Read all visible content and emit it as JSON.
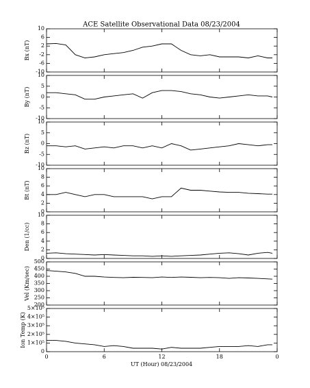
{
  "title": "ACE Satellite Observational Data   08/23/2004",
  "xlabel": "UT (Hour)   08/23/2004",
  "xlim": [
    0,
    24
  ],
  "xticks": [
    0,
    6,
    12,
    18,
    {
      "value": 24,
      "label": "0"
    }
  ],
  "chart_data": [
    {
      "type": "line",
      "ylabel": "Bx (nT)",
      "ylim": [
        -10,
        10
      ],
      "yticks": [
        -10,
        -6,
        -2,
        2,
        6,
        10
      ],
      "color": "#000000",
      "x": [
        0,
        1,
        2,
        3,
        4,
        5,
        6,
        7,
        8,
        9,
        10,
        11,
        12,
        13,
        14,
        15,
        16,
        17,
        18,
        19,
        20,
        21,
        22,
        23,
        23.5
      ],
      "values": [
        3,
        3.2,
        2.5,
        -2,
        -3.5,
        -3,
        -2,
        -1.5,
        -1,
        0,
        1.5,
        2,
        3,
        3,
        0,
        -2,
        -2.5,
        -2,
        -3,
        -3,
        -3,
        -3.5,
        -2.5,
        -3.5,
        -3.5
      ]
    },
    {
      "type": "line",
      "ylabel": "By (nT)",
      "ylim": [
        -10,
        10
      ],
      "yticks": [
        -10,
        -5,
        0,
        5,
        10
      ],
      "color": "#000000",
      "x": [
        0,
        1,
        2,
        3,
        4,
        5,
        6,
        7,
        8,
        9,
        10,
        11,
        12,
        13,
        14,
        15,
        16,
        17,
        18,
        19,
        20,
        21,
        22,
        23,
        23.5
      ],
      "values": [
        2,
        2,
        1.5,
        1,
        -1,
        -1,
        0,
        0.5,
        1,
        1.5,
        -0.5,
        2,
        3,
        3,
        2.5,
        1.5,
        1,
        0,
        -0.5,
        0,
        0.5,
        1,
        0.5,
        0.5,
        0
      ]
    },
    {
      "type": "line",
      "ylabel": "Bz (nT)",
      "ylim": [
        -10,
        10
      ],
      "yticks": [
        -10,
        -5,
        0,
        5,
        10
      ],
      "color": "#000000",
      "x": [
        0,
        1,
        2,
        3,
        4,
        5,
        6,
        7,
        8,
        9,
        10,
        11,
        12,
        13,
        14,
        15,
        16,
        17,
        18,
        19,
        20,
        21,
        22,
        23,
        23.5
      ],
      "values": [
        -1,
        -1,
        -1.5,
        -1,
        -2.5,
        -2,
        -1.5,
        -2,
        -1,
        -1,
        -2,
        -1,
        -2,
        0,
        -1,
        -3,
        -2.5,
        -2,
        -1.5,
        -1,
        0,
        -0.5,
        -1,
        -0.5,
        -0.5
      ]
    },
    {
      "type": "line",
      "ylabel": "Bt (nT)",
      "ylim": [
        0,
        10
      ],
      "yticks": [
        0,
        2,
        4,
        6,
        8,
        10
      ],
      "color": "#000000",
      "x": [
        0,
        1,
        2,
        3,
        4,
        5,
        6,
        7,
        8,
        9,
        10,
        11,
        12,
        13,
        14,
        15,
        16,
        17,
        18,
        19,
        20,
        21,
        22,
        23,
        23.5
      ],
      "values": [
        4,
        4,
        4.5,
        4,
        3.5,
        4,
        4,
        3.5,
        3.5,
        3.5,
        3.5,
        3,
        3.5,
        3.5,
        5.5,
        5,
        5,
        4.8,
        4.6,
        4.5,
        4.5,
        4.3,
        4.2,
        4.1,
        4.1
      ]
    },
    {
      "type": "line",
      "ylabel": "Den (1/cc)",
      "ylim": [
        0,
        10
      ],
      "yticks": [
        0,
        2,
        4,
        6,
        8,
        10
      ],
      "color": "#000000",
      "x": [
        0,
        1,
        2,
        3,
        4,
        5,
        6,
        7,
        8,
        9,
        10,
        11,
        12,
        13,
        14,
        15,
        16,
        17,
        18,
        19,
        20,
        21,
        22,
        23,
        23.5
      ],
      "values": [
        1.2,
        1.3,
        1.1,
        1,
        0.9,
        0.8,
        0.9,
        0.8,
        0.7,
        0.6,
        0.6,
        0.5,
        0.6,
        0.5,
        0.6,
        0.7,
        0.8,
        1,
        1.2,
        1.3,
        1.1,
        0.8,
        1.2,
        1.4,
        1.2
      ]
    },
    {
      "type": "line",
      "ylabel": "Vel (Km/sec)",
      "ylim": [
        200,
        500
      ],
      "yticks": [
        200,
        250,
        300,
        350,
        400,
        450,
        500
      ],
      "color": "#000000",
      "x": [
        0,
        1,
        2,
        3,
        4,
        5,
        6,
        7,
        8,
        9,
        10,
        11,
        12,
        13,
        14,
        15,
        16,
        17,
        18,
        19,
        20,
        21,
        22,
        23,
        23.5
      ],
      "values": [
        440,
        435,
        430,
        420,
        400,
        400,
        395,
        392,
        390,
        393,
        392,
        390,
        395,
        392,
        395,
        393,
        390,
        392,
        390,
        385,
        390,
        388,
        385,
        382,
        380
      ]
    },
    {
      "type": "line",
      "ylabel": "Ion Temp (K)",
      "ylim": [
        0,
        500000
      ],
      "yticks": [
        0,
        {
          "value": 100000,
          "label": "1×10⁵"
        },
        {
          "value": 200000,
          "label": "2×10⁵"
        },
        {
          "value": 300000,
          "label": "3×10⁵"
        },
        {
          "value": 400000,
          "label": "4×10⁵"
        },
        {
          "value": 500000,
          "label": "5×10⁵"
        }
      ],
      "color": "#000000",
      "x": [
        0,
        1,
        2,
        3,
        4,
        5,
        6,
        7,
        8,
        9,
        10,
        11,
        12,
        13,
        14,
        15,
        16,
        17,
        18,
        19,
        20,
        21,
        22,
        23,
        23.5
      ],
      "values": [
        130000,
        130000,
        120000,
        100000,
        90000,
        80000,
        60000,
        70000,
        60000,
        40000,
        40000,
        40000,
        30000,
        50000,
        40000,
        40000,
        40000,
        50000,
        60000,
        60000,
        60000,
        70000,
        60000,
        80000,
        80000
      ]
    }
  ]
}
